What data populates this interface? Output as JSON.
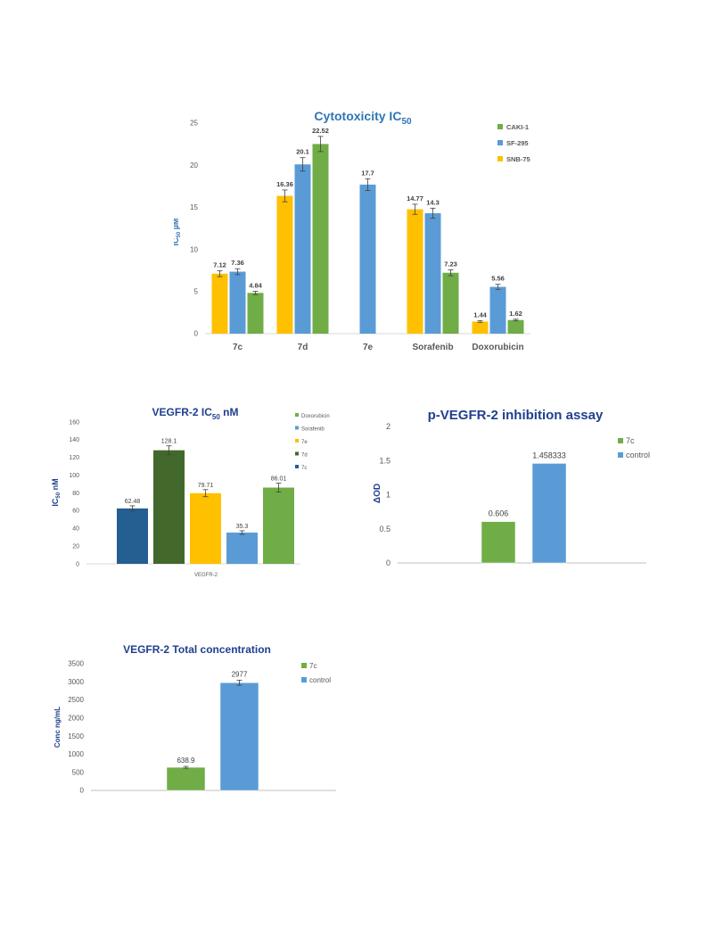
{
  "colors": {
    "yellow": "#ffc000",
    "blue": "#5b9bd5",
    "green": "#70ad47",
    "darkblue": "#255e91",
    "darkgreen": "#43682b",
    "axis_text": "#595959",
    "title_blue": "#2e75b6",
    "title_navy": "#1f3f8f"
  },
  "chart_data": [
    {
      "type": "bar",
      "title_main": "Cytotoxicity IC",
      "title_sub": "50",
      "ylabel_main": "IC",
      "ylabel_sub": "50",
      "ylabel_unit": " µM",
      "categories": [
        "7c",
        "7d",
        "7e",
        "Sorafenib",
        "Doxorubicin"
      ],
      "ylim": [
        0,
        25
      ],
      "yticks": [
        "0",
        "5",
        "10",
        "15",
        "20",
        "25"
      ],
      "series": [
        {
          "name": "SNB-75",
          "color": "#ffc000",
          "values": [
            7.12,
            16.36,
            null,
            14.77,
            1.44
          ],
          "labels": [
            "7.12",
            "16.36",
            "",
            "14.77",
            "1.44"
          ],
          "err": [
            0.35,
            0.7,
            0,
            0.6,
            0.1
          ]
        },
        {
          "name": "SF-295",
          "color": "#5b9bd5",
          "values": [
            7.36,
            20.1,
            17.7,
            14.3,
            5.56
          ],
          "labels": [
            "7.36",
            "20.1",
            "17.7",
            "14.3",
            "5.56"
          ],
          "err": [
            0.35,
            0.8,
            0.7,
            0.6,
            0.3
          ]
        },
        {
          "name": "CAKI-1",
          "color": "#70ad47",
          "values": [
            4.84,
            22.52,
            null,
            7.23,
            1.62
          ],
          "labels": [
            "4.84",
            "22.52",
            "",
            "7.23",
            "1.62"
          ],
          "err": [
            0.2,
            0.9,
            0,
            0.35,
            0.1
          ]
        }
      ],
      "legend": [
        "CAKI-1",
        "SF-295",
        "SNB-75"
      ],
      "legend_colors": [
        "#70ad47",
        "#5b9bd5",
        "#ffc000"
      ],
      "legend_position": "top-right"
    },
    {
      "type": "bar",
      "title_main": "VEGFR-2  IC",
      "title_sub": "50",
      "title_unit": " nM",
      "ylabel_main": "IC",
      "ylabel_sub": "50",
      "ylabel_unit": "  nM",
      "xlabel": "VEGFR-2",
      "ylim": [
        0,
        160
      ],
      "yticks": [
        "0",
        "20",
        "40",
        "60",
        "80",
        "100",
        "120",
        "140",
        "160"
      ],
      "series": [
        {
          "name": "7c",
          "color": "#255e91",
          "value": 62.48,
          "label": "62.48",
          "err": 3
        },
        {
          "name": "7d",
          "color": "#43682b",
          "value": 128.1,
          "label": "128.1",
          "err": 5
        },
        {
          "name": "7e",
          "color": "#ffc000",
          "value": 79.71,
          "label": "79.71",
          "err": 4
        },
        {
          "name": "Sorafenib",
          "color": "#5b9bd5",
          "value": 35.3,
          "label": "35.3",
          "err": 2
        },
        {
          "name": "Doxorubicin",
          "color": "#70ad47",
          "value": 86.01,
          "label": "86.01",
          "err": 5
        }
      ],
      "legend": [
        "Doxorubicin",
        "Sorafenib",
        "7e",
        "7d",
        "7c"
      ],
      "legend_colors": [
        "#70ad47",
        "#5b9bd5",
        "#ffc000",
        "#43682b",
        "#255e91"
      ],
      "legend_position": "right"
    },
    {
      "type": "bar",
      "title": "p-VEGFR-2 inhibition assay",
      "ylabel": "ΔOD",
      "ylim": [
        0,
        2
      ],
      "yticks": [
        "0",
        "0.5",
        "1",
        "1.5",
        "2"
      ],
      "series": [
        {
          "name": "7c",
          "color": "#70ad47",
          "value": 0.606,
          "label": "0.606"
        },
        {
          "name": "control",
          "color": "#5b9bd5",
          "value": 1.458333,
          "label": "1.458333"
        }
      ],
      "legend": [
        "7c",
        "control"
      ],
      "legend_colors": [
        "#70ad47",
        "#5b9bd5"
      ],
      "legend_position": "top-right"
    },
    {
      "type": "bar",
      "title": "VEGFR-2  Total concentration",
      "ylabel": "Conc ng/mL",
      "ylim": [
        0,
        3500
      ],
      "yticks": [
        "0",
        "500",
        "1000",
        "1500",
        "2000",
        "2500",
        "3000",
        "3500"
      ],
      "series": [
        {
          "name": "7c",
          "color": "#70ad47",
          "value": 638.9,
          "label": "638.9",
          "err": 25
        },
        {
          "name": "control",
          "color": "#5b9bd5",
          "value": 2977,
          "label": "2977",
          "err": 70
        }
      ],
      "legend": [
        "7c",
        "control"
      ],
      "legend_colors": [
        "#70ad47",
        "#5b9bd5"
      ],
      "legend_position": "top-right"
    }
  ]
}
